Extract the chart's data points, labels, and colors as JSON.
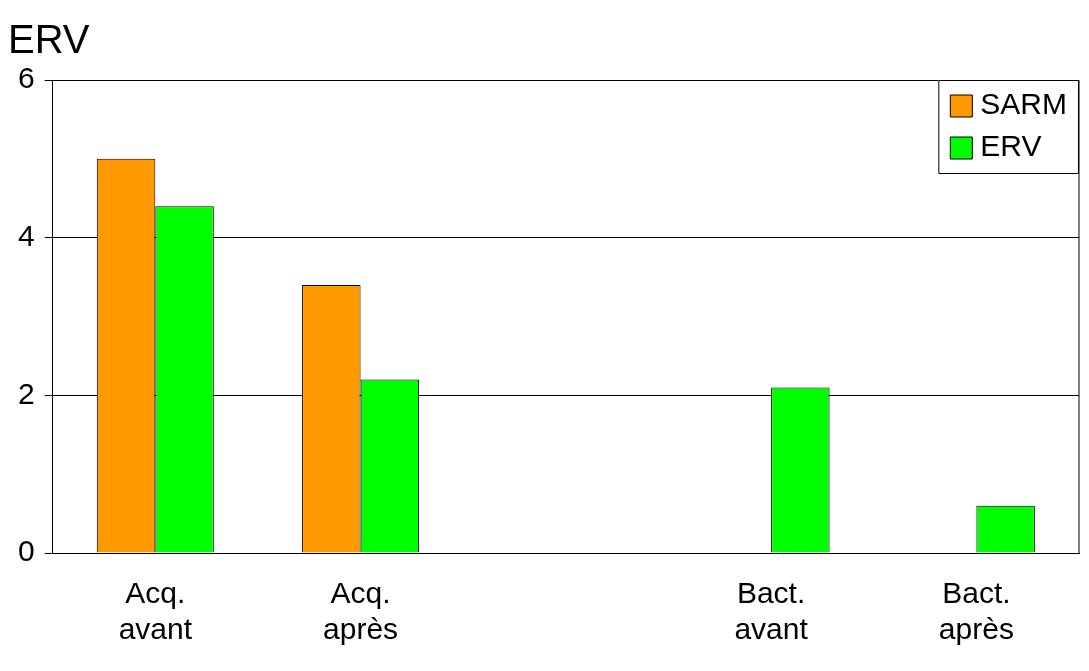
{
  "chart_data": {
    "type": "bar",
    "title": "ERV",
    "categories": [
      "Acq. avant",
      "Acq. après",
      null,
      "Bact. avant",
      "Bact. après"
    ],
    "series": [
      {
        "name": "SARM",
        "color": "#ff9900",
        "values": [
          5.0,
          3.4,
          null,
          null,
          null
        ]
      },
      {
        "name": "ERV",
        "color": "#00ff00",
        "values": [
          4.4,
          2.2,
          null,
          2.1,
          0.6
        ]
      }
    ],
    "ylim": [
      0,
      6
    ],
    "yticks": [
      0,
      2,
      4,
      6
    ],
    "grid": "y",
    "legend": "top right"
  }
}
